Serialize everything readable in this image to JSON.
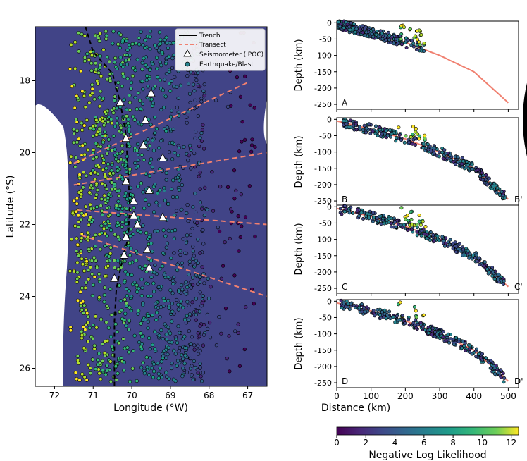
{
  "chart_data": [
    {
      "type": "scatter",
      "subtype": "map",
      "xlabel": "Longitude (°W)",
      "ylabel": "Latitude (°S)",
      "xlim": [
        72.5,
        66.5
      ],
      "ylim": [
        26.5,
        16.5
      ],
      "xticks": [
        72,
        71,
        70,
        69,
        68,
        67
      ],
      "yticks": [
        18,
        20,
        22,
        24,
        26
      ],
      "legend": {
        "placement": "top-right",
        "items": [
          "Trench",
          "Transect",
          "Seismometer (IPOC)",
          "Earthquake/Blast"
        ]
      },
      "trench": [
        [
          71.2,
          16.5
        ],
        [
          71.0,
          17.2
        ],
        [
          70.5,
          17.8
        ],
        [
          70.3,
          18.6
        ],
        [
          70.15,
          19.5
        ],
        [
          70.1,
          20.5
        ],
        [
          70.05,
          21.5
        ],
        [
          70.1,
          22.4
        ],
        [
          70.25,
          23.0
        ],
        [
          70.4,
          23.8
        ],
        [
          70.45,
          24.7
        ],
        [
          70.45,
          25.6
        ],
        [
          70.45,
          26.5
        ]
      ],
      "transects": [
        [
          [
            71.5,
            20.3
          ],
          [
            67.0,
            18.05
          ]
        ],
        [
          [
            71.5,
            20.9
          ],
          [
            66.5,
            20.0
          ]
        ],
        [
          [
            71.4,
            21.6
          ],
          [
            66.5,
            22.0
          ]
        ],
        [
          [
            71.3,
            22.3
          ],
          [
            66.5,
            24.0
          ]
        ]
      ],
      "seismometers": [
        [
          70.3,
          18.6
        ],
        [
          69.5,
          18.35
        ],
        [
          69.65,
          19.1
        ],
        [
          70.15,
          19.6
        ],
        [
          69.7,
          19.8
        ],
        [
          69.2,
          20.15
        ],
        [
          70.15,
          20.8
        ],
        [
          69.55,
          21.05
        ],
        [
          69.95,
          21.35
        ],
        [
          69.2,
          21.8
        ],
        [
          69.95,
          21.75
        ],
        [
          69.85,
          22.0
        ],
        [
          70.15,
          22.35
        ],
        [
          69.6,
          22.7
        ],
        [
          70.2,
          22.85
        ],
        [
          69.55,
          23.2
        ],
        [
          70.45,
          23.5
        ]
      ],
      "colorbar": {
        "label": "Negative Log Likelihood",
        "range": [
          0,
          12.5
        ],
        "ticks": [
          0,
          2,
          4,
          6,
          8,
          10,
          12
        ]
      }
    },
    {
      "type": "scatter",
      "subtype": "cross-section",
      "panels": [
        {
          "start_label": "A",
          "end_label": ""
        },
        {
          "start_label": "B",
          "end_label": "B'"
        },
        {
          "start_label": "C",
          "end_label": "C'"
        },
        {
          "start_label": "D",
          "end_label": "D'"
        }
      ],
      "ylabel": "Depth (km)",
      "xlabel": "Distance (km)",
      "xlim": [
        0,
        530
      ],
      "ylim": [
        -265,
        5
      ],
      "xticks": [
        0,
        100,
        200,
        300,
        400,
        500
      ],
      "yticks": [
        0,
        -50,
        -100,
        -150,
        -200,
        -250
      ],
      "slab_profile": [
        [
          0,
          -5
        ],
        [
          100,
          -30
        ],
        [
          200,
          -60
        ],
        [
          300,
          -100
        ],
        [
          400,
          -150
        ],
        [
          500,
          -245
        ]
      ]
    }
  ]
}
